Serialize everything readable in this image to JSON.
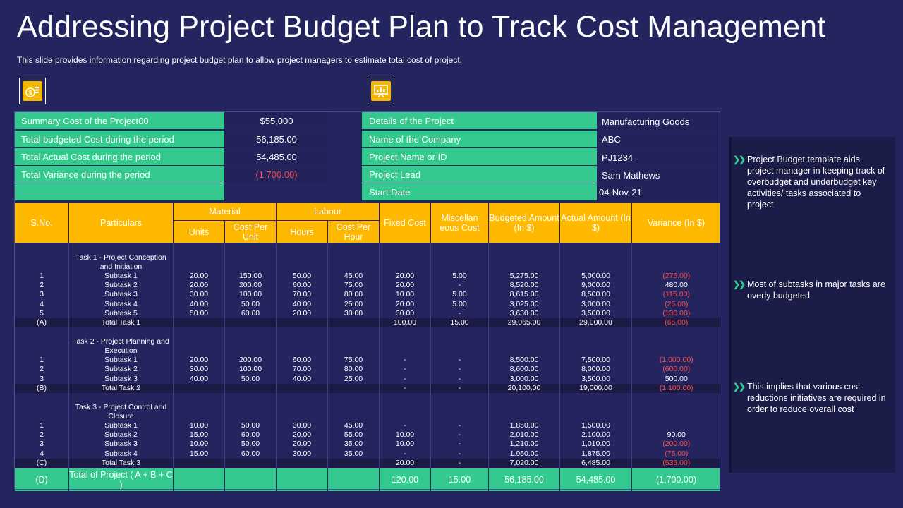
{
  "title": "Addressing Project Budget Plan to Track Cost Management",
  "subtitle": "This slide provides information regarding project budget plan to allow project managers to estimate total cost of project.",
  "icons": [
    "dollar-coins-icon",
    "presentation-chart-icon"
  ],
  "colors": {
    "background": "#24245e",
    "green": "#34c98e",
    "orange": "#ffb800",
    "negative": "#ff4d4d"
  },
  "summary": {
    "left": [
      {
        "label": "Summary Cost of the Project00",
        "value": "$55,000"
      },
      {
        "label": "Total budgeted Cost during the period",
        "value": "56,185.00"
      },
      {
        "label": "Total Actual Cost during the period",
        "value": "54,485.00"
      },
      {
        "label": "Total Variance during the period",
        "value": "(1,700.00)"
      }
    ],
    "right": [
      {
        "label": "Details of the Project",
        "value": "Manufacturing Goods"
      },
      {
        "label": "Name of the Company",
        "value": "ABC"
      },
      {
        "label": "Project Name or ID",
        "value": "PJ1234"
      },
      {
        "label": "Project Lead",
        "value": "Sam Mathews"
      },
      {
        "label": "Start Date",
        "value": "04-Nov-21"
      }
    ]
  },
  "table": {
    "headers": {
      "sno": "S.No.",
      "particulars": "Particulars",
      "material": "Material",
      "labour": "Labour",
      "units": "Units",
      "cost_per_unit": "Cost Per Unit",
      "hours": "Hours",
      "cost_per_hour": "Cost Per Hour",
      "fixed_cost": "Fixed Cost",
      "misc_cost": "Miscellan eous Cost",
      "budgeted": "Budgeted Amount (In $)",
      "actual": "Actual Amount (In $)",
      "variance": "Variance (In $)"
    },
    "tasks": [
      {
        "title": "Task 1 - Project Conception and Initiation",
        "rows": [
          [
            "1",
            "Subtask 1",
            "20.00",
            "150.00",
            "50.00",
            "45.00",
            "20.00",
            "5.00",
            "5,275.00",
            "5,000.00",
            "(275.00)"
          ],
          [
            "2",
            "Subtask 2",
            "20.00",
            "200.00",
            "60.00",
            "75.00",
            "20.00",
            "-",
            "8,520.00",
            "9,000.00",
            "480.00"
          ],
          [
            "3",
            "Subtask 3",
            "30.00",
            "100.00",
            "70.00",
            "80.00",
            "10.00",
            "5.00",
            "8,615.00",
            "8,500.00",
            "(115.00)"
          ],
          [
            "4",
            "Subtask 4",
            "40.00",
            "50.00",
            "40.00",
            "25.00",
            "20.00",
            "5.00",
            "3,025.00",
            "3,000.00",
            "(25.00)"
          ],
          [
            "5",
            "Subtask 5",
            "50.00",
            "60.00",
            "20.00",
            "30.00",
            "30.00",
            "-",
            "3,630.00",
            "3,500.00",
            "(130.00)"
          ]
        ],
        "total": [
          "(A)",
          "Total Task 1",
          "",
          "",
          "",
          "",
          "100.00",
          "15.00",
          "29,065.00",
          "29,000.00",
          "(65.00)"
        ]
      },
      {
        "title": "Task 2 - Project Planning and Execution",
        "rows": [
          [
            "1",
            "Subtask 1",
            "20.00",
            "200.00",
            "60.00",
            "75.00",
            "-",
            "-",
            "8,500.00",
            "7,500.00",
            "(1,000.00)"
          ],
          [
            "2",
            "Subtask 2",
            "30.00",
            "100.00",
            "70.00",
            "80.00",
            "-",
            "-",
            "8,600.00",
            "8,000.00",
            "(600.00)"
          ],
          [
            "3",
            "Subtask 3",
            "40.00",
            "50.00",
            "40.00",
            "25.00",
            "-",
            "-",
            "3,000.00",
            "3,500.00",
            "500.00"
          ]
        ],
        "total": [
          "(B)",
          "Total Task 2",
          "",
          "",
          "",
          "",
          "-",
          "-",
          "20,100.00",
          "19,000.00",
          "(1,100.00)"
        ]
      },
      {
        "title": "Task 3 - Project Control and Closure",
        "rows": [
          [
            "1",
            "Subtask 1",
            "10.00",
            "50.00",
            "30.00",
            "45.00",
            "-",
            "-",
            "1,850.00",
            "1,500.00",
            ""
          ],
          [
            "2",
            "Subtask 2",
            "15.00",
            "60.00",
            "20.00",
            "55.00",
            "10.00",
            "-",
            "2,010.00",
            "2,100.00",
            "90.00"
          ],
          [
            "3",
            "Subtask 3",
            "10.00",
            "50.00",
            "20.00",
            "35.00",
            "10.00",
            "-",
            "1,210.00",
            "1,010.00",
            "(200.00)"
          ],
          [
            "4",
            "Subtask 4",
            "15.00",
            "60.00",
            "30.00",
            "35.00",
            "-",
            "-",
            "1,950.00",
            "1,875.00",
            "(75.00)"
          ]
        ],
        "total": [
          "(C)",
          "Total Task 3",
          "",
          "",
          "",
          "",
          "20.00",
          "-",
          "7,020.00",
          "6,485.00",
          "(535.00)"
        ]
      }
    ],
    "grand_total": [
      "(D)",
      "Total of Project ( A + B + C )",
      "",
      "",
      "",
      "",
      "120.00",
      "15.00",
      "56,185.00",
      "54,485.00",
      "(1,700.00)"
    ]
  },
  "notes": [
    "Project Budget template aids project manager in keeping track of overbudget  and underbudget  key activities/ tasks associated to project",
    "Most of subtasks in major tasks are overly budgeted",
    "This implies that various cost reductions initiatives are required in order to reduce overall  cost"
  ]
}
